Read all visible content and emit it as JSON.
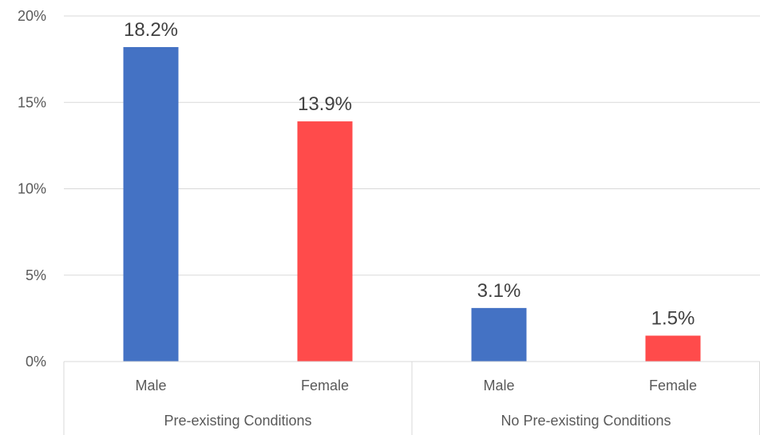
{
  "chart_data": {
    "type": "bar",
    "title": "",
    "xlabel": "",
    "ylabel": "",
    "ylim": [
      0,
      20
    ],
    "yticks": [
      0,
      5,
      10,
      15,
      20
    ],
    "ytick_labels": [
      "0%",
      "5%",
      "10%",
      "15%",
      "20%"
    ],
    "grid": true,
    "legend": "none",
    "groups": [
      {
        "label": "Pre-existing Conditions",
        "categories": [
          {
            "label": "Male",
            "value": 18.2,
            "value_label": "18.2%",
            "color": "#4472C4"
          },
          {
            "label": "Female",
            "value": 13.9,
            "value_label": "13.9%",
            "color": "#FF4B4B"
          }
        ]
      },
      {
        "label": "No Pre-existing Conditions",
        "categories": [
          {
            "label": "Male",
            "value": 3.1,
            "value_label": "3.1%",
            "color": "#4472C4"
          },
          {
            "label": "Female",
            "value": 1.5,
            "value_label": "1.5%",
            "color": "#FF4B4B"
          }
        ]
      }
    ]
  }
}
